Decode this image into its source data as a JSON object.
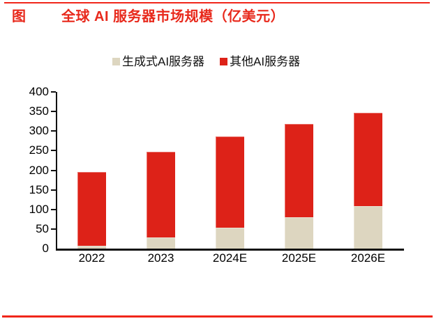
{
  "header": {
    "tag": "图",
    "title": "全球 AI 服务器市场规模（亿美元）"
  },
  "colors": {
    "title_red": "#e8291c",
    "rule_red": "#f0261a",
    "generative_tan": "#ddd6c0",
    "other_red": "#dd2218",
    "axis_black": "#111111"
  },
  "legend": [
    {
      "label": "生成式AI服务器",
      "color": "#ddd6c0"
    },
    {
      "label": "其他AI服务器",
      "color": "#dd2218"
    }
  ],
  "chart_data": {
    "type": "bar",
    "stacked": true,
    "title": "全球 AI 服务器市场规模（亿美元）",
    "xlabel": "",
    "ylabel": "",
    "categories": [
      "2022",
      "2023",
      "2024E",
      "2025E",
      "2026E"
    ],
    "series": [
      {
        "name": "生成式AI服务器",
        "slug": "generative-ai-server",
        "color": "#ddd6c0",
        "values": [
          8,
          29,
          53,
          80,
          109
        ]
      },
      {
        "name": "其他AI服务器",
        "slug": "other-ai-server",
        "color": "#dd2218",
        "values": [
          187,
          218,
          233,
          238,
          238
        ]
      }
    ],
    "totals": [
      195,
      247,
      286,
      318,
      347
    ],
    "ylim": [
      0,
      400
    ],
    "yticks": [
      0,
      50,
      100,
      150,
      200,
      250,
      300,
      350,
      400
    ],
    "grid": false,
    "legend_position": "top"
  }
}
